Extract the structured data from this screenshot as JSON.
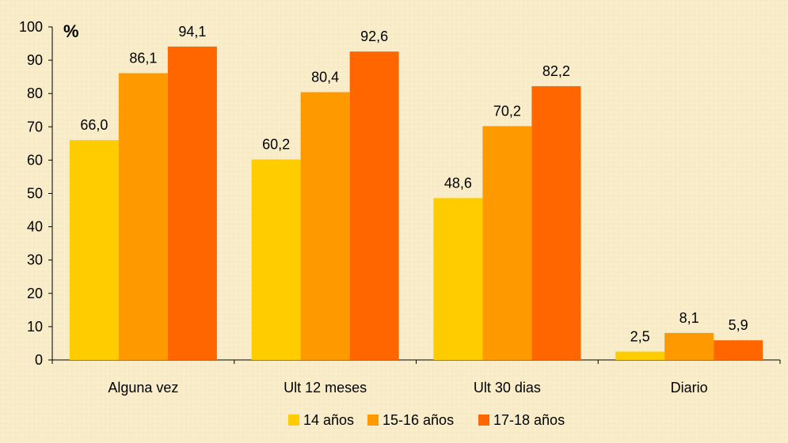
{
  "chart_data": {
    "type": "bar",
    "unit_label": "%",
    "categories": [
      "Alguna vez",
      "Ult 12 meses",
      "Ult 30 dias",
      "Diario"
    ],
    "series": [
      {
        "name": "14 años",
        "color": "#ffcc00",
        "values": [
          66.0,
          60.2,
          48.6,
          2.5
        ],
        "labels": [
          "66,0",
          "60,2",
          "48,6",
          "2,5"
        ]
      },
      {
        "name": "15-16 años",
        "color": "#ff9900",
        "values": [
          86.1,
          80.4,
          70.2,
          8.1
        ],
        "labels": [
          "86,1",
          "80,4",
          "70,2",
          "8,1"
        ]
      },
      {
        "name": "17-18 años",
        "color": "#ff6600",
        "values": [
          94.1,
          92.6,
          82.2,
          5.9
        ],
        "labels": [
          "94,1",
          "92,6",
          "82,2",
          "5,9"
        ]
      }
    ],
    "ylim": [
      0,
      100
    ],
    "yticks": [
      0,
      10,
      20,
      30,
      40,
      50,
      60,
      70,
      80,
      90,
      100
    ],
    "grid": false,
    "legend_position": "bottom"
  }
}
